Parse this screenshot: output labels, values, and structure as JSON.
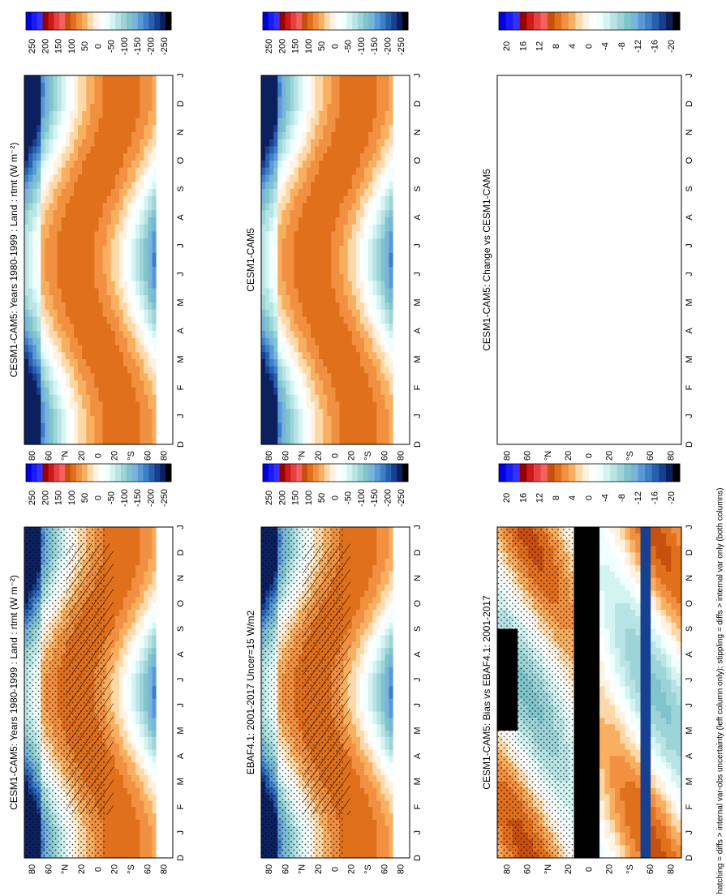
{
  "footer_note": "hatching = diffs > internal var-obs uncertainty (left column only); stippling = diffs > internal var only (both columns)",
  "palettes": {
    "main": [
      "#0000e6",
      "#1a1aff",
      "#3333ff",
      "#990000",
      "#cc1a1a",
      "#e64040",
      "#f56060",
      "#c8500f",
      "#e0701c",
      "#f09040",
      "#f8b060",
      "#fdd8a8",
      "#fff2e0",
      "#ffffff",
      "#f0ffff",
      "#d4f4f2",
      "#b8e4e6",
      "#9cd4d8",
      "#80c4cc",
      "#78b4dc",
      "#5a9ad4",
      "#3c80c8",
      "#2860b0",
      "#184090",
      "#0c2060",
      "#000000"
    ],
    "diff": [
      "#0000e6",
      "#1a1aff",
      "#3333ff",
      "#990000",
      "#cc1a1a",
      "#e64040",
      "#f56060",
      "#c8500f",
      "#e0701c",
      "#f09040",
      "#f8b060",
      "#fdd8a8",
      "#fff2e0",
      "#ffffff",
      "#f0ffff",
      "#d4f4f2",
      "#b8e4e6",
      "#9cd4d8",
      "#80c4cc",
      "#78b4dc",
      "#5a9ad4",
      "#3c80c8",
      "#2860b0",
      "#184090",
      "#0c2060",
      "#000000"
    ]
  },
  "chart_data": [
    {
      "id": "p1",
      "type": "heatmap",
      "title": "CESM1-CAM5: Years 1980-1999 : Land : rtmt (W m⁻²)",
      "field": "clim",
      "stipple": true,
      "hatch": true,
      "x_ticks": [
        "D",
        "J",
        "F",
        "M",
        "A",
        "M",
        "J",
        "J",
        "A",
        "S",
        "O",
        "N",
        "D",
        "J"
      ],
      "y_ticks": [
        "80",
        "60",
        "°N",
        "20",
        "0",
        "20",
        "°S",
        "60",
        "80"
      ],
      "colorbar_labels": [
        "250",
        "200",
        "150",
        "100",
        "50",
        "0",
        "-50",
        "-100",
        "-150",
        "-200",
        "-250"
      ],
      "palette": "main"
    },
    {
      "id": "p2",
      "type": "heatmap",
      "title": "CESM1-CAM5: Years 1980-1999 : Land : rtmt (W m⁻²)",
      "field": "clim",
      "stipple": false,
      "hatch": false,
      "x_ticks": [
        "D",
        "J",
        "F",
        "M",
        "A",
        "M",
        "J",
        "J",
        "A",
        "S",
        "O",
        "N",
        "D",
        "J"
      ],
      "y_ticks": [
        "80",
        "60",
        "°N",
        "20",
        "0",
        "20",
        "°S",
        "60",
        "80"
      ],
      "colorbar_labels": [
        "250",
        "200",
        "150",
        "100",
        "50",
        "0",
        "-50",
        "-100",
        "-150",
        "-200",
        "-250"
      ],
      "palette": "main"
    },
    {
      "id": "p3",
      "type": "heatmap",
      "title": "EBAF4.1: 2001-2017 Uncer=15 W/m2",
      "field": "clim",
      "stipple": true,
      "hatch": true,
      "x_ticks": [
        "D",
        "J",
        "F",
        "M",
        "A",
        "M",
        "J",
        "J",
        "A",
        "S",
        "O",
        "N",
        "D",
        "J"
      ],
      "y_ticks": [
        "80",
        "60",
        "°N",
        "20",
        "0",
        "20",
        "°S",
        "60",
        "80"
      ],
      "colorbar_labels": [
        "250",
        "200",
        "150",
        "100",
        "50",
        "0",
        "-50",
        "-100",
        "-150",
        "-200",
        "-250"
      ],
      "palette": "main"
    },
    {
      "id": "p4",
      "type": "heatmap",
      "title": "CESM1-CAM5",
      "field": "clim",
      "stipple": false,
      "hatch": false,
      "x_ticks": [
        "D",
        "J",
        "F",
        "M",
        "A",
        "M",
        "J",
        "J",
        "A",
        "S",
        "O",
        "N",
        "D",
        "J"
      ],
      "y_ticks": [
        "80",
        "60",
        "°N",
        "20",
        "0",
        "20",
        "°S",
        "60",
        "80"
      ],
      "colorbar_labels": [
        "250",
        "200",
        "150",
        "100",
        "50",
        "0",
        "-50",
        "-100",
        "-150",
        "-200",
        "-250"
      ],
      "palette": "main"
    },
    {
      "id": "p5",
      "type": "heatmap",
      "title": "CESM1-CAM5: Bias vs EBAF4.1: 2001-2017",
      "field": "bias",
      "stipple": true,
      "hatch": false,
      "x_ticks": [
        "D",
        "J",
        "F",
        "M",
        "A",
        "M",
        "J",
        "J",
        "A",
        "S",
        "O",
        "N",
        "D",
        "J"
      ],
      "y_ticks": [
        "80",
        "60",
        "°N",
        "20",
        "0",
        "20",
        "°S",
        "60",
        "80"
      ],
      "colorbar_labels": [
        "20",
        "16",
        "12",
        "8",
        "4",
        "0",
        "-4",
        "-8",
        "-12",
        "-16",
        "-20"
      ],
      "palette": "diff"
    },
    {
      "id": "p6",
      "type": "heatmap",
      "title": "CESM1-CAM5: Change vs CESM1-CAM5",
      "field": "empty",
      "stipple": false,
      "hatch": false,
      "x_ticks": [
        "D",
        "J",
        "F",
        "M",
        "A",
        "M",
        "J",
        "J",
        "A",
        "S",
        "O",
        "N",
        "D",
        "J"
      ],
      "y_ticks": [
        "80",
        "60",
        "°N",
        "20",
        "0",
        "20",
        "°S",
        "60",
        "80"
      ],
      "colorbar_labels": [
        "20",
        "16",
        "12",
        "8",
        "4",
        "0",
        "-4",
        "-8",
        "-12",
        "-16",
        "-20"
      ],
      "palette": "diff"
    }
  ]
}
